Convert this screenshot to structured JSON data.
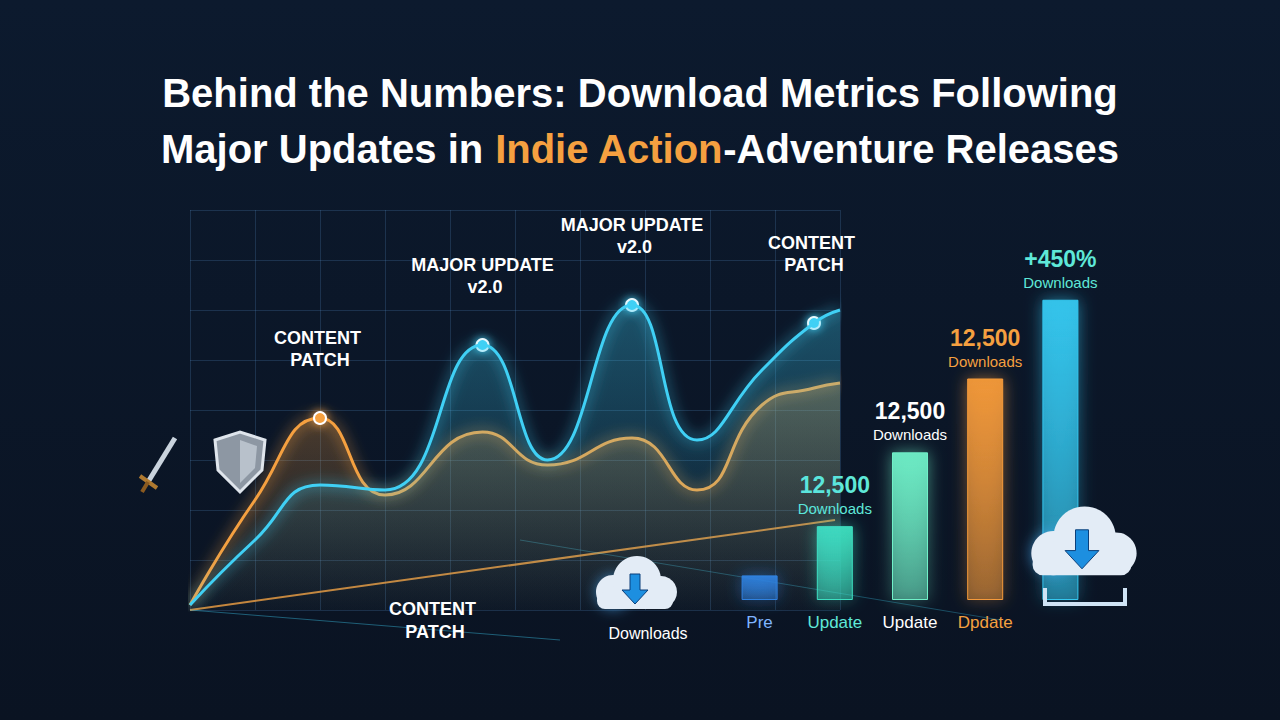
{
  "chart_data": [
    {
      "type": "line",
      "title": [
        "Behind the Numbers: Download Metrics Following",
        "Major Updates in Indie Action-Adventure Releases"
      ],
      "highlight": "Indie Action",
      "x": [
        0,
        10,
        20,
        30,
        45,
        55,
        68,
        78,
        88,
        96,
        100
      ],
      "xlim": [
        0,
        100
      ],
      "xticks": [
        0,
        10,
        20,
        30,
        40,
        50,
        60,
        70,
        80,
        90,
        100
      ],
      "ylim": [
        0,
        400
      ],
      "yticks": [
        0,
        50,
        100,
        150,
        200,
        250,
        300,
        350,
        400
      ],
      "grid": true,
      "tick_labels": false,
      "series": [
        {
          "color": "#3fd0f5",
          "values": [
            5,
            70,
            125,
            120,
            265,
            150,
            305,
            170,
            240,
            287,
            300
          ],
          "annotations": [
            {
              "x": 45,
              "text": "MAJOR UPDATE v2.0"
            },
            {
              "x": 68,
              "text": "MAJOR UPDATE v2.0"
            },
            {
              "x": 96,
              "text": "CONTENT PATCH"
            }
          ]
        },
        {
          "color": "#f5a040",
          "values": [
            5,
            110,
            192,
            115,
            178,
            145,
            172,
            120,
            205,
            222,
            227
          ],
          "annotations": [
            {
              "x": 20,
              "text": "CONTENT PATCH"
            }
          ]
        }
      ],
      "annotations": [
        "CONTENT PATCH",
        "Downloads"
      ]
    },
    {
      "type": "bar",
      "categories": [
        "Pre",
        "Update",
        "Update",
        "Dpdate",
        null
      ],
      "values": [
        25,
        75,
        150,
        225,
        305
      ],
      "colors": [
        "#2f7fe0",
        "#3ee0c0",
        "#6ff0c8",
        "#f59a3a",
        "#35c8f0"
      ],
      "ylim": [
        0,
        320
      ],
      "grid": false,
      "tick_labels": "x",
      "annotations": [
        null,
        "12,500 Downloads",
        "12,500 Downloads",
        "12,500 Downloads",
        "+450% Downloads"
      ]
    }
  ]
}
